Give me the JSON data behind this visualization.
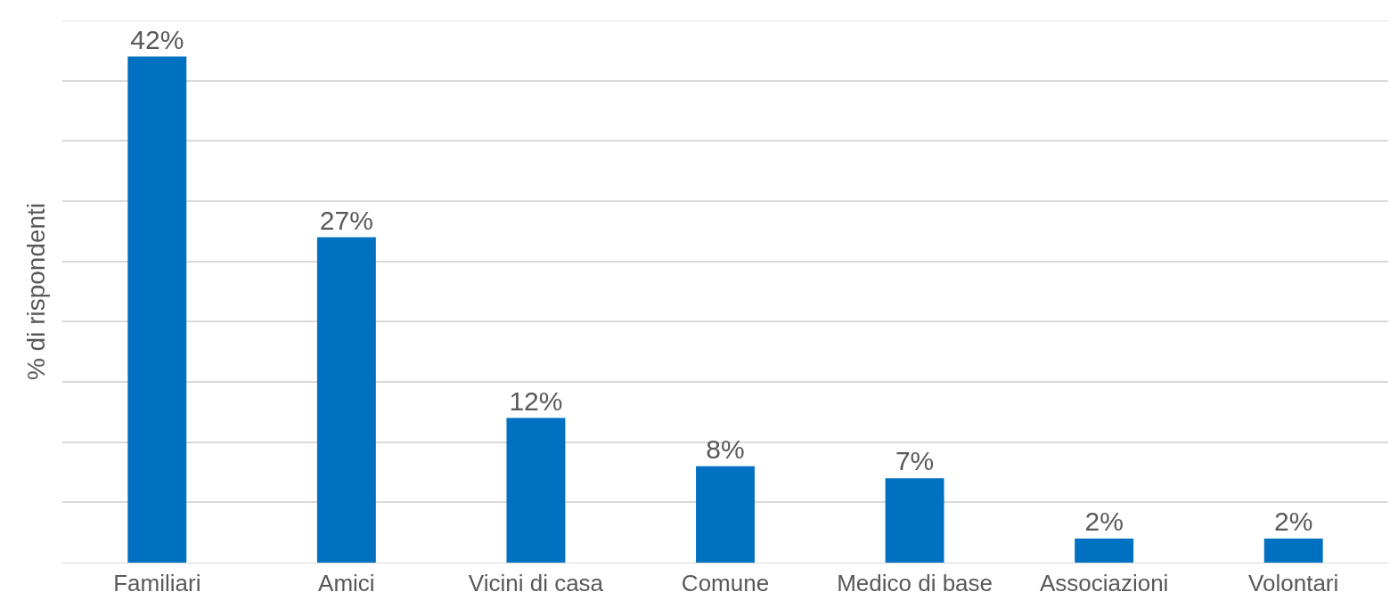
{
  "chart_data": {
    "type": "bar",
    "ylabel": "% di rispondenti",
    "categories": [
      "Familiari",
      "Amici",
      "Vicini di casa",
      "Comune",
      "Medico di base",
      "Associazioni",
      "Volontari"
    ],
    "values": [
      42,
      27,
      12,
      8,
      7,
      2,
      2
    ],
    "value_labels": [
      "42%",
      "27%",
      "12%",
      "8%",
      "7%",
      "2%",
      "2%"
    ],
    "color": "#0070c0",
    "ylim": [
      0,
      45
    ],
    "yticks": [
      {
        "value": 0,
        "label": null
      },
      {
        "value": 5,
        "label": null
      },
      {
        "value": 10,
        "label": null
      },
      {
        "value": 15,
        "label": null
      },
      {
        "value": 20,
        "label": null
      },
      {
        "value": 25,
        "label": null
      },
      {
        "value": 30,
        "label": null
      },
      {
        "value": 35,
        "label": null
      },
      {
        "value": 40,
        "label": null
      },
      {
        "value": 45,
        "label": null
      }
    ],
    "grid": "y",
    "tick_labels": "x",
    "legend": false
  }
}
